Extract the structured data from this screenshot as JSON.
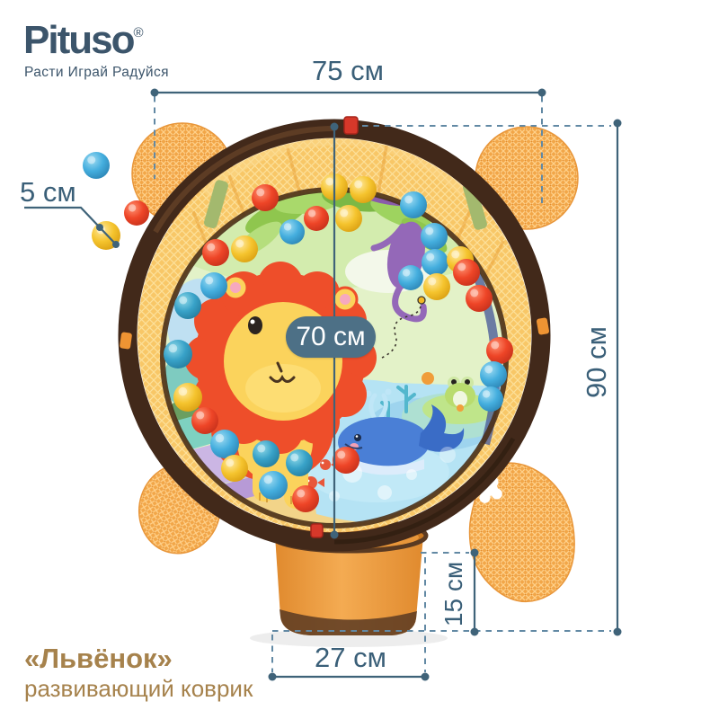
{
  "brand": {
    "name": "Pituso",
    "registered": "®",
    "tagline": "Расти Играй Радуйся"
  },
  "dimensions": {
    "top_width": "75 см",
    "right_height": "90 см",
    "mat_diameter": "70 см",
    "ball_diameter": "5 см",
    "basket_height": "15 см",
    "basket_width": "27 см"
  },
  "product": {
    "name": "«Львёнок»",
    "type": "развивающий коврик"
  },
  "colors": {
    "annotation_text": "#3a5f78",
    "annotation_line": "#3f6379",
    "annotation_dash": "#6289a4",
    "badge_background": "#4d7086",
    "badge_text": "#ffffff",
    "logo": "#3c556b",
    "title": "#a6824c",
    "ball_red": "#ee4527",
    "ball_yellow": "#f5c42e",
    "ball_blue": "#44aede",
    "ball_teal": "#38a2c8",
    "mesh_orange": "#f2a648",
    "rim_brown": "#42291a"
  }
}
